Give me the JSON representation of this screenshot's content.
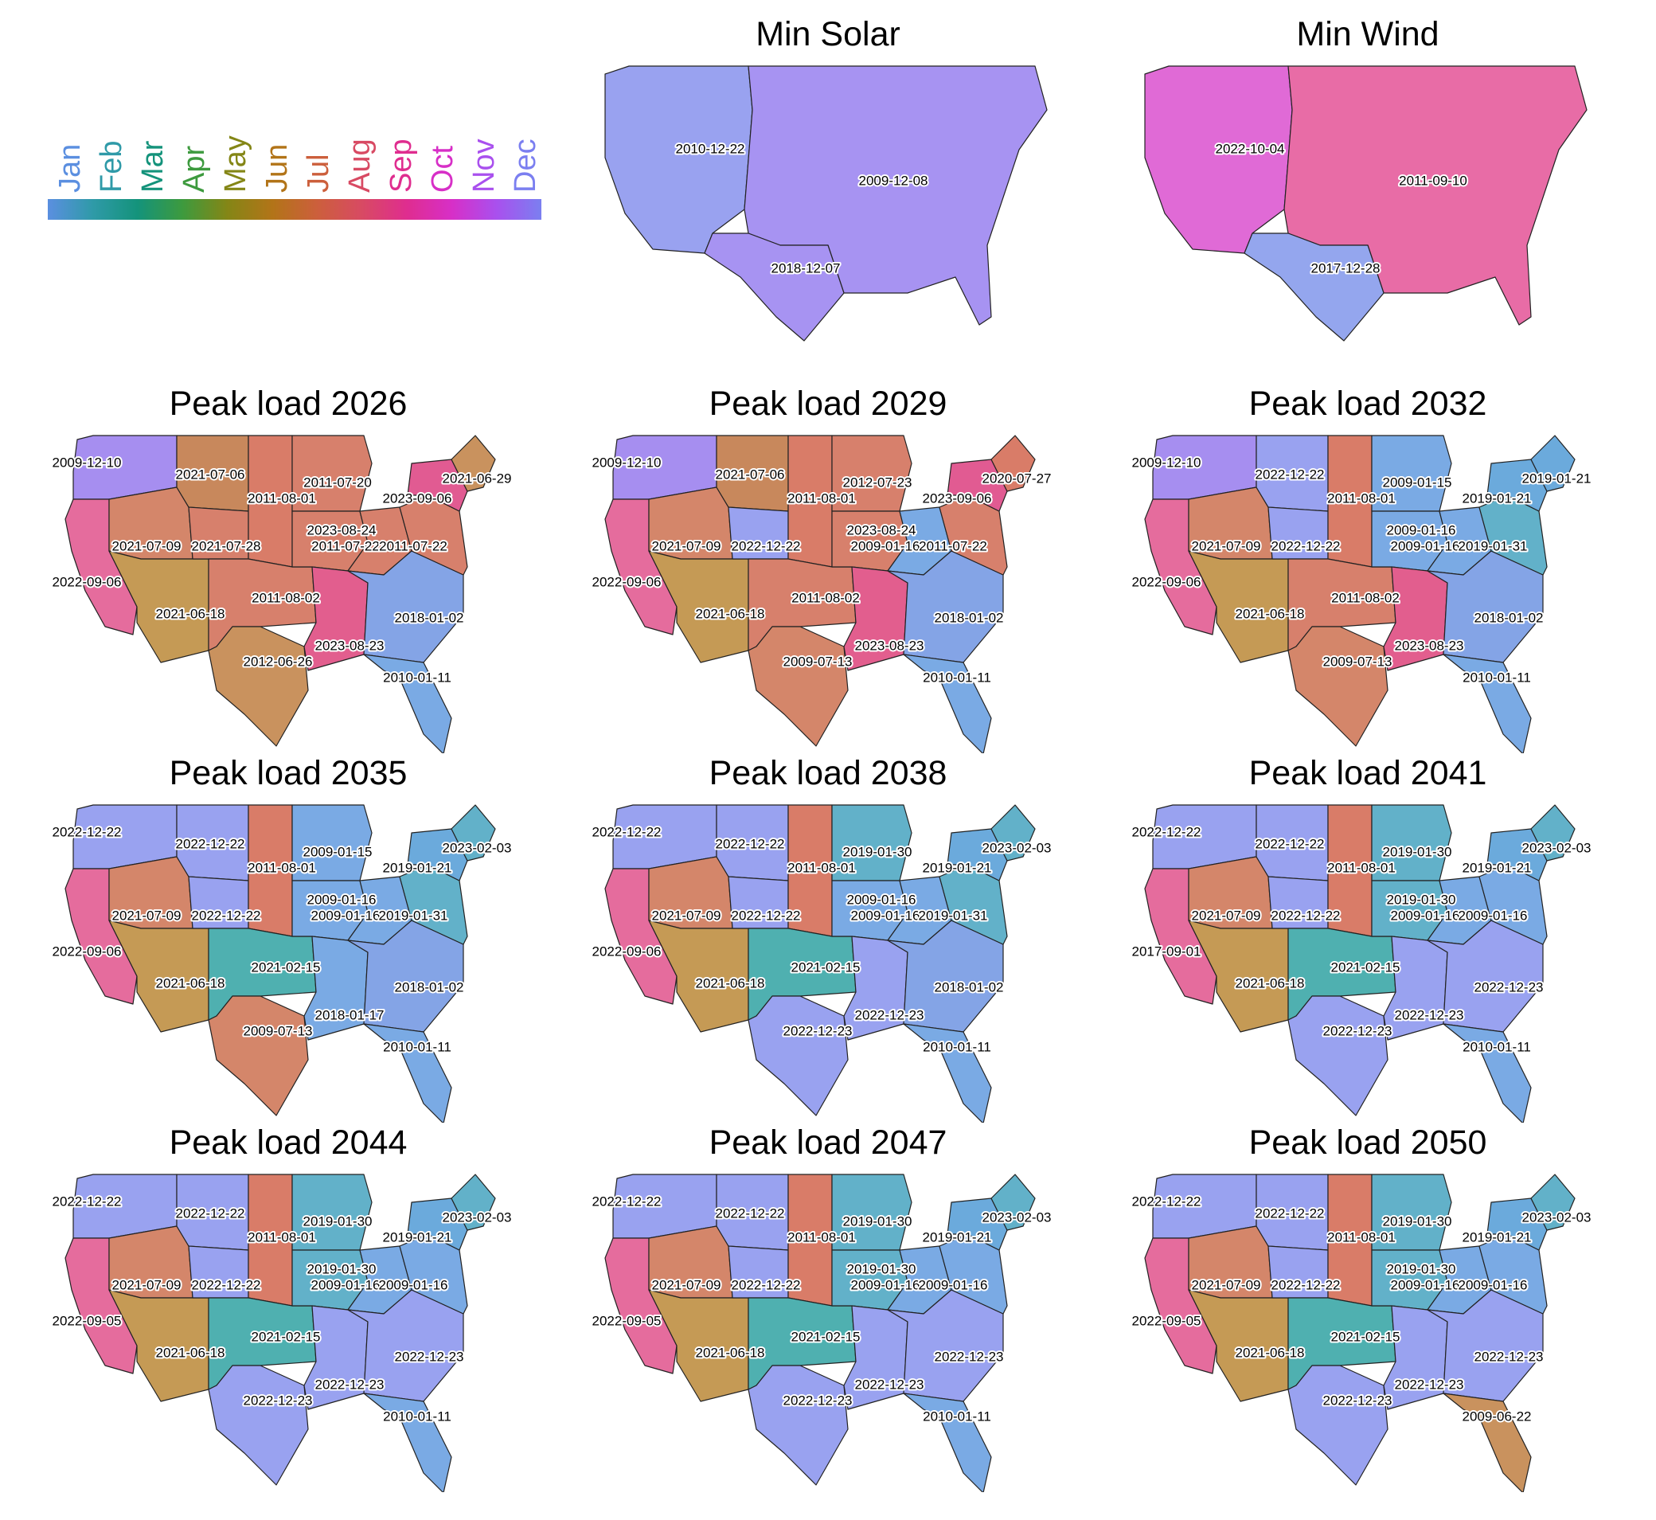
{
  "legend": {
    "months": [
      "Jan",
      "Feb",
      "Mar",
      "Apr",
      "May",
      "Jun",
      "Jul",
      "Aug",
      "Sep",
      "Oct",
      "Nov",
      "Dec"
    ],
    "colors": [
      "#5b8fe0",
      "#2f9aa8",
      "#14937b",
      "#3d9a3e",
      "#848616",
      "#b27418",
      "#cc5f3c",
      "#d84a63",
      "#df2d8f",
      "#d72fc7",
      "#a950ee",
      "#7b7ff0"
    ]
  },
  "panels": [
    {
      "title": "Min Solar",
      "regions": {
        "WEST": {
          "date": "2010-12-22",
          "color": "#99a2f0"
        },
        "EAST": {
          "date": "2009-12-08",
          "color": "#a793f2"
        },
        "ERCOT": {
          "date": "2018-12-07",
          "color": "#a793f2"
        }
      }
    },
    {
      "title": "Min Wind",
      "regions": {
        "WEST": {
          "date": "2022-10-04",
          "color": "#e06ad6"
        },
        "EAST": {
          "date": "2011-09-10",
          "color": "#e86ca6"
        },
        "ERCOT": {
          "date": "2017-12-28",
          "color": "#94a6ee"
        }
      }
    },
    {
      "title": "Peak load 2026",
      "regions": {
        "NW": {
          "date": "2009-12-10",
          "color": "#a68ef0"
        },
        "CA": {
          "date": "2022-09-06",
          "color": "#e56c9d"
        },
        "BASIN": {
          "date": "2021-07-09",
          "color": "#d4866a"
        },
        "SW": {
          "date": "2021-06-18",
          "color": "#c59a55"
        },
        "ROCKIES": {
          "date": "2021-07-06",
          "color": "#c8885c"
        },
        "PLAINS": {
          "date": "2021-07-28",
          "color": "#d7806c"
        },
        "NPLAINS": {
          "date": "2011-08-01",
          "color": "#d97c68"
        },
        "SPP": {
          "date": "2011-08-02",
          "color": "#d7806c"
        },
        "ERCOT": {
          "date": "2012-06-26",
          "color": "#c9925e"
        },
        "MISO_N": {
          "date": "2011-07-20",
          "color": "#d7806c"
        },
        "MIDWEST": {
          "date": "2023-08-24",
          "color": "#d7806c"
        },
        "OHIO": {
          "date": "2011-07-22",
          "color": "#d7806c"
        },
        "MISO_S": {
          "date": "2023-08-23",
          "color": "#e25e8e"
        },
        "SE": {
          "date": "2018-01-02",
          "color": "#84a4e6"
        },
        "FL": {
          "date": "2010-01-11",
          "color": "#7aaae4"
        },
        "PJM": {
          "date": "2011-07-22",
          "color": "#d7806c"
        },
        "NY": {
          "date": "2023-09-06",
          "color": "#e15b92"
        },
        "NE": {
          "date": "2021-06-29",
          "color": "#c9925e"
        }
      }
    },
    {
      "title": "Peak load 2029",
      "regions": {
        "NW": {
          "date": "2009-12-10",
          "color": "#a68ef0"
        },
        "CA": {
          "date": "2022-09-06",
          "color": "#e56c9d"
        },
        "BASIN": {
          "date": "2021-07-09",
          "color": "#d4866a"
        },
        "SW": {
          "date": "2021-06-18",
          "color": "#c59a55"
        },
        "ROCKIES": {
          "date": "2021-07-06",
          "color": "#c8885c"
        },
        "PLAINS": {
          "date": "2022-12-22",
          "color": "#99a2f0"
        },
        "NPLAINS": {
          "date": "2011-08-01",
          "color": "#d97c68"
        },
        "SPP": {
          "date": "2011-08-02",
          "color": "#d7806c"
        },
        "ERCOT": {
          "date": "2009-07-13",
          "color": "#d4866a"
        },
        "MISO_N": {
          "date": "2012-07-23",
          "color": "#d7806c"
        },
        "MIDWEST": {
          "date": "2023-08-24",
          "color": "#d7806c"
        },
        "OHIO": {
          "date": "2009-01-16",
          "color": "#7aaae4"
        },
        "MISO_S": {
          "date": "2023-08-23",
          "color": "#e25e8e"
        },
        "SE": {
          "date": "2018-01-02",
          "color": "#84a4e6"
        },
        "FL": {
          "date": "2010-01-11",
          "color": "#7aaae4"
        },
        "PJM": {
          "date": "2011-07-22",
          "color": "#d7806c"
        },
        "NY": {
          "date": "2023-09-06",
          "color": "#e15b92"
        },
        "NE": {
          "date": "2020-07-27",
          "color": "#d97c68"
        }
      }
    },
    {
      "title": "Peak load 2032",
      "regions": {
        "NW": {
          "date": "2009-12-10",
          "color": "#a68ef0"
        },
        "CA": {
          "date": "2022-09-06",
          "color": "#e56c9d"
        },
        "BASIN": {
          "date": "2021-07-09",
          "color": "#d4866a"
        },
        "SW": {
          "date": "2021-06-18",
          "color": "#c59a55"
        },
        "ROCKIES": {
          "date": "2022-12-22",
          "color": "#99a2f0"
        },
        "PLAINS": {
          "date": "2022-12-22",
          "color": "#99a2f0"
        },
        "NPLAINS": {
          "date": "2011-08-01",
          "color": "#d97c68"
        },
        "SPP": {
          "date": "2011-08-02",
          "color": "#d7806c"
        },
        "ERCOT": {
          "date": "2009-07-13",
          "color": "#d4866a"
        },
        "MISO_N": {
          "date": "2009-01-15",
          "color": "#7aaae4"
        },
        "MIDWEST": {
          "date": "2009-01-16",
          "color": "#7aaae4"
        },
        "OHIO": {
          "date": "2009-01-16",
          "color": "#7aaae4"
        },
        "MISO_S": {
          "date": "2023-08-23",
          "color": "#e25e8e"
        },
        "SE": {
          "date": "2018-01-02",
          "color": "#84a4e6"
        },
        "FL": {
          "date": "2010-01-11",
          "color": "#7aaae4"
        },
        "PJM": {
          "date": "2019-01-31",
          "color": "#62b1c9"
        },
        "NY": {
          "date": "2019-01-21",
          "color": "#6baadc"
        },
        "NE": {
          "date": "2019-01-21",
          "color": "#6baadc"
        }
      }
    },
    {
      "title": "Peak load 2035",
      "regions": {
        "NW": {
          "date": "2022-12-22",
          "color": "#99a2f0"
        },
        "CA": {
          "date": "2022-09-06",
          "color": "#e56c9d"
        },
        "BASIN": {
          "date": "2021-07-09",
          "color": "#d4866a"
        },
        "SW": {
          "date": "2021-06-18",
          "color": "#c59a55"
        },
        "ROCKIES": {
          "date": "2022-12-22",
          "color": "#99a2f0"
        },
        "PLAINS": {
          "date": "2022-12-22",
          "color": "#99a2f0"
        },
        "NPLAINS": {
          "date": "2011-08-01",
          "color": "#d97c68"
        },
        "SPP": {
          "date": "2021-02-15",
          "color": "#4fb0b0"
        },
        "ERCOT": {
          "date": "2009-07-13",
          "color": "#d4866a"
        },
        "MISO_N": {
          "date": "2009-01-15",
          "color": "#7aaae4"
        },
        "MIDWEST": {
          "date": "2009-01-16",
          "color": "#7aaae4"
        },
        "OHIO": {
          "date": "2009-01-16",
          "color": "#7aaae4"
        },
        "MISO_S": {
          "date": "2018-01-17",
          "color": "#7aaae4"
        },
        "SE": {
          "date": "2018-01-02",
          "color": "#84a4e6"
        },
        "FL": {
          "date": "2010-01-11",
          "color": "#7aaae4"
        },
        "PJM": {
          "date": "2019-01-31",
          "color": "#62b1c9"
        },
        "NY": {
          "date": "2019-01-21",
          "color": "#6baadc"
        },
        "NE": {
          "date": "2023-02-03",
          "color": "#62b1c9"
        }
      }
    },
    {
      "title": "Peak load 2038",
      "regions": {
        "NW": {
          "date": "2022-12-22",
          "color": "#99a2f0"
        },
        "CA": {
          "date": "2022-09-06",
          "color": "#e56c9d"
        },
        "BASIN": {
          "date": "2021-07-09",
          "color": "#d4866a"
        },
        "SW": {
          "date": "2021-06-18",
          "color": "#c59a55"
        },
        "ROCKIES": {
          "date": "2022-12-22",
          "color": "#99a2f0"
        },
        "PLAINS": {
          "date": "2022-12-22",
          "color": "#99a2f0"
        },
        "NPLAINS": {
          "date": "2011-08-01",
          "color": "#d97c68"
        },
        "SPP": {
          "date": "2021-02-15",
          "color": "#4fb0b0"
        },
        "ERCOT": {
          "date": "2022-12-23",
          "color": "#99a2f0"
        },
        "MISO_N": {
          "date": "2019-01-30",
          "color": "#62b1c9"
        },
        "MIDWEST": {
          "date": "2009-01-16",
          "color": "#7aaae4"
        },
        "OHIO": {
          "date": "2009-01-16",
          "color": "#7aaae4"
        },
        "MISO_S": {
          "date": "2022-12-23",
          "color": "#99a2f0"
        },
        "SE": {
          "date": "2018-01-02",
          "color": "#84a4e6"
        },
        "FL": {
          "date": "2010-01-11",
          "color": "#7aaae4"
        },
        "PJM": {
          "date": "2019-01-31",
          "color": "#62b1c9"
        },
        "NY": {
          "date": "2019-01-21",
          "color": "#6baadc"
        },
        "NE": {
          "date": "2023-02-03",
          "color": "#62b1c9"
        }
      }
    },
    {
      "title": "Peak load 2041",
      "regions": {
        "NW": {
          "date": "2022-12-22",
          "color": "#99a2f0"
        },
        "CA": {
          "date": "2017-09-01",
          "color": "#e56c9d"
        },
        "BASIN": {
          "date": "2021-07-09",
          "color": "#d4866a"
        },
        "SW": {
          "date": "2021-06-18",
          "color": "#c59a55"
        },
        "ROCKIES": {
          "date": "2022-12-22",
          "color": "#99a2f0"
        },
        "PLAINS": {
          "date": "2022-12-22",
          "color": "#99a2f0"
        },
        "NPLAINS": {
          "date": "2011-08-01",
          "color": "#d97c68"
        },
        "SPP": {
          "date": "2021-02-15",
          "color": "#4fb0b0"
        },
        "ERCOT": {
          "date": "2022-12-23",
          "color": "#99a2f0"
        },
        "MISO_N": {
          "date": "2019-01-30",
          "color": "#62b1c9"
        },
        "MIDWEST": {
          "date": "2019-01-30",
          "color": "#62b1c9"
        },
        "OHIO": {
          "date": "2009-01-16",
          "color": "#7aaae4"
        },
        "MISO_S": {
          "date": "2022-12-23",
          "color": "#99a2f0"
        },
        "SE": {
          "date": "2022-12-23",
          "color": "#99a2f0"
        },
        "FL": {
          "date": "2010-01-11",
          "color": "#7aaae4"
        },
        "PJM": {
          "date": "2009-01-16",
          "color": "#7aaae4"
        },
        "NY": {
          "date": "2019-01-21",
          "color": "#6baadc"
        },
        "NE": {
          "date": "2023-02-03",
          "color": "#62b1c9"
        }
      }
    },
    {
      "title": "Peak load 2044",
      "regions": {
        "NW": {
          "date": "2022-12-22",
          "color": "#99a2f0"
        },
        "CA": {
          "date": "2022-09-05",
          "color": "#e56c9d"
        },
        "BASIN": {
          "date": "2021-07-09",
          "color": "#d4866a"
        },
        "SW": {
          "date": "2021-06-18",
          "color": "#c59a55"
        },
        "ROCKIES": {
          "date": "2022-12-22",
          "color": "#99a2f0"
        },
        "PLAINS": {
          "date": "2022-12-22",
          "color": "#99a2f0"
        },
        "NPLAINS": {
          "date": "2011-08-01",
          "color": "#d97c68"
        },
        "SPP": {
          "date": "2021-02-15",
          "color": "#4fb0b0"
        },
        "ERCOT": {
          "date": "2022-12-23",
          "color": "#99a2f0"
        },
        "MISO_N": {
          "date": "2019-01-30",
          "color": "#62b1c9"
        },
        "MIDWEST": {
          "date": "2019-01-30",
          "color": "#62b1c9"
        },
        "OHIO": {
          "date": "2009-01-16",
          "color": "#7aaae4"
        },
        "MISO_S": {
          "date": "2022-12-23",
          "color": "#99a2f0"
        },
        "SE": {
          "date": "2022-12-23",
          "color": "#99a2f0"
        },
        "FL": {
          "date": "2010-01-11",
          "color": "#7aaae4"
        },
        "PJM": {
          "date": "2009-01-16",
          "color": "#7aaae4"
        },
        "NY": {
          "date": "2019-01-21",
          "color": "#6baadc"
        },
        "NE": {
          "date": "2023-02-03",
          "color": "#62b1c9"
        }
      }
    },
    {
      "title": "Peak load 2047",
      "regions": {
        "NW": {
          "date": "2022-12-22",
          "color": "#99a2f0"
        },
        "CA": {
          "date": "2022-09-05",
          "color": "#e56c9d"
        },
        "BASIN": {
          "date": "2021-07-09",
          "color": "#d4866a"
        },
        "SW": {
          "date": "2021-06-18",
          "color": "#c59a55"
        },
        "ROCKIES": {
          "date": "2022-12-22",
          "color": "#99a2f0"
        },
        "PLAINS": {
          "date": "2022-12-22",
          "color": "#99a2f0"
        },
        "NPLAINS": {
          "date": "2011-08-01",
          "color": "#d97c68"
        },
        "SPP": {
          "date": "2021-02-15",
          "color": "#4fb0b0"
        },
        "ERCOT": {
          "date": "2022-12-23",
          "color": "#99a2f0"
        },
        "MISO_N": {
          "date": "2019-01-30",
          "color": "#62b1c9"
        },
        "MIDWEST": {
          "date": "2019-01-30",
          "color": "#62b1c9"
        },
        "OHIO": {
          "date": "2009-01-16",
          "color": "#7aaae4"
        },
        "MISO_S": {
          "date": "2022-12-23",
          "color": "#99a2f0"
        },
        "SE": {
          "date": "2022-12-23",
          "color": "#99a2f0"
        },
        "FL": {
          "date": "2010-01-11",
          "color": "#7aaae4"
        },
        "PJM": {
          "date": "2009-01-16",
          "color": "#7aaae4"
        },
        "NY": {
          "date": "2019-01-21",
          "color": "#6baadc"
        },
        "NE": {
          "date": "2023-02-03",
          "color": "#62b1c9"
        }
      }
    },
    {
      "title": "Peak load 2050",
      "regions": {
        "NW": {
          "date": "2022-12-22",
          "color": "#99a2f0"
        },
        "CA": {
          "date": "2022-09-05",
          "color": "#e56c9d"
        },
        "BASIN": {
          "date": "2021-07-09",
          "color": "#d4866a"
        },
        "SW": {
          "date": "2021-06-18",
          "color": "#c59a55"
        },
        "ROCKIES": {
          "date": "2022-12-22",
          "color": "#99a2f0"
        },
        "PLAINS": {
          "date": "2022-12-22",
          "color": "#99a2f0"
        },
        "NPLAINS": {
          "date": "2011-08-01",
          "color": "#d97c68"
        },
        "SPP": {
          "date": "2021-02-15",
          "color": "#4fb0b0"
        },
        "ERCOT": {
          "date": "2022-12-23",
          "color": "#99a2f0"
        },
        "MISO_N": {
          "date": "2019-01-30",
          "color": "#62b1c9"
        },
        "MIDWEST": {
          "date": "2019-01-30",
          "color": "#62b1c9"
        },
        "OHIO": {
          "date": "2009-01-16",
          "color": "#7aaae4"
        },
        "MISO_S": {
          "date": "2022-12-23",
          "color": "#99a2f0"
        },
        "SE": {
          "date": "2022-12-23",
          "color": "#99a2f0"
        },
        "FL": {
          "date": "2009-06-22",
          "color": "#c9925e"
        },
        "PJM": {
          "date": "2009-01-16",
          "color": "#7aaae4"
        },
        "NY": {
          "date": "2019-01-21",
          "color": "#6baadc"
        },
        "NE": {
          "date": "2023-02-03",
          "color": "#62b1c9"
        }
      }
    }
  ]
}
